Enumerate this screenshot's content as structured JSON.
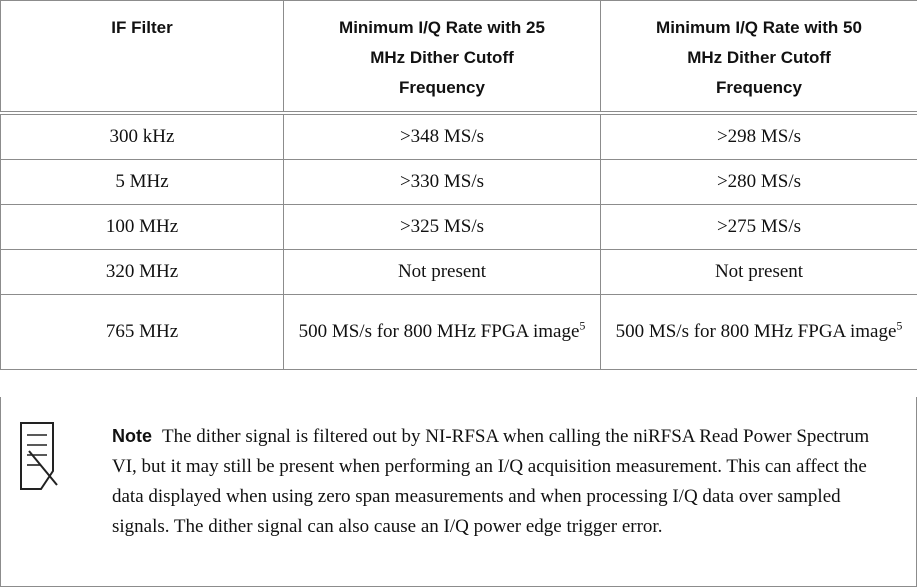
{
  "table": {
    "headers": [
      "IF Filter",
      "Minimum I/Q Rate with 25 MHz Dither Cutoff Frequency",
      "Minimum I/Q Rate with 50 MHz Dither Cutoff Frequency"
    ],
    "rows": [
      [
        "300 kHz",
        ">348 MS/s",
        ">298 MS/s"
      ],
      [
        "5 MHz",
        ">330 MS/s",
        ">280 MS/s"
      ],
      [
        "100 MHz",
        ">325 MS/s",
        ">275 MS/s"
      ],
      [
        "320 MHz",
        "Not present",
        "Not present"
      ],
      [
        "765 MHz",
        {
          "text": "500 MS/s for 800 MHz FPGA image",
          "sup": "5"
        },
        {
          "text": "500 MS/s for 800 MHz FPGA image",
          "sup": "5"
        }
      ]
    ]
  },
  "note": {
    "label": "Note",
    "text": "The dither signal is filtered out by NI-RFSA when calling the niRFSA Read Power Spectrum VI, but it may still be present when performing an I/Q acquisition measurement. This can affect the data displayed when using zero span measurements and when processing I/Q data over sampled signals. The dither signal can also cause an I/Q power edge trigger error."
  }
}
